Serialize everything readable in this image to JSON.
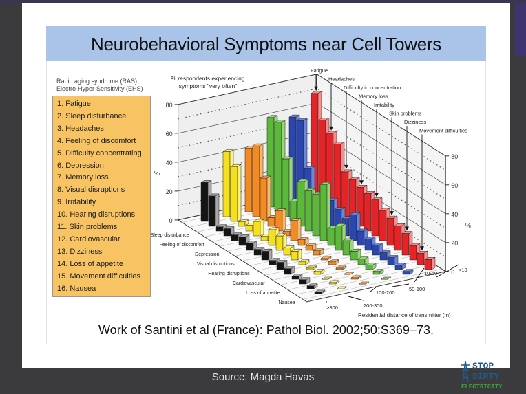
{
  "slide": {
    "title": "Neurobehavioral Symptoms near Cell Towers",
    "legend_heading": [
      "Rapid aging syndrome (RAS)",
      "Electro-Hyper-Sensitivity (EHS)"
    ],
    "legend_items": [
      "1. Fatigue",
      "2. Sleep disturbance",
      "3. Headaches",
      "4. Feeling of discomfort",
      "5. Difficulty concentrating",
      "6. Depression",
      "7. Memory loss",
      "8. Visual disruptions",
      "9. Irritability",
      "10. Hearing disruptions",
      "11. Skin problems",
      "12. Cardiovascular",
      "13. Dizziness",
      "14. Loss of appetite",
      "15. Movement difficulties",
      "16. Nausea"
    ],
    "citation": "Work of Santini et al (France): Pathol Biol. 2002;50:S369–73.",
    "source": "Source: Magda Havas",
    "logo": {
      "line1": "STOP",
      "line2": "DIRTY",
      "line3": "ELECTRICITY"
    }
  },
  "chart_data": {
    "type": "bar",
    "subtype": "3d-grouped",
    "title": "% respondents experiencing symptoms \"very often\"",
    "ylabel": "%",
    "xlabel": "Residential distance of transmitter (m)",
    "ylim": [
      0,
      80
    ],
    "yticks": [
      0,
      20,
      40,
      60,
      80
    ],
    "symptoms": [
      "Fatigue",
      "Sleep disturbance",
      "Headaches",
      "Feeling of discomfort",
      "Difficulty in concentration",
      "Depression",
      "Memory loss",
      "Visual disruptions",
      "Irritability",
      "Hearing disruptions",
      "Skin problems",
      "Cardiovascular",
      "Dizziness",
      "Loss of appetite",
      "Movement difficulties",
      "Nausea"
    ],
    "front_labels": [
      "Sleep disturbance",
      "Feeling of discomfort",
      "Depression",
      "Visual disruptions",
      "Hearing disruptions",
      "Cardiovascular",
      "Loss of appetite",
      "Nausea"
    ],
    "top_labels": [
      "Fatigue",
      "Headaches",
      "Difficulty in concentration",
      "Memory loss",
      "Irritability",
      "Skin problems",
      "Dizziness",
      "Movement difficulties"
    ],
    "series": [
      {
        "name": ">300",
        "color": "#141414",
        "side": "#a8a8a8",
        "values": [
          27,
          21,
          3,
          5,
          4,
          6,
          5,
          4,
          6,
          3,
          5,
          4,
          2,
          3,
          2,
          1
        ]
      },
      {
        "name": "200-300",
        "color": "#f4e11c",
        "side": "#fff27a",
        "values": [
          45,
          38,
          3,
          4,
          10,
          3,
          11,
          10,
          5,
          6,
          2,
          1,
          2,
          0,
          1,
          0
        ]
      },
      {
        "name": "100-200",
        "color": "#f38a22",
        "side": "#fbb76a",
        "values": [
          44,
          49,
          30,
          6,
          14,
          3,
          14,
          4,
          3,
          3,
          1,
          2,
          1,
          0,
          1,
          0
        ]
      },
      {
        "name": "50-100",
        "color": "#5cb83a",
        "side": "#9ad67a",
        "values": [
          62,
          62,
          40,
          14,
          31,
          28,
          29,
          39,
          12,
          17,
          10,
          6,
          4,
          3,
          2,
          0
        ]
      },
      {
        "name": "10-50",
        "color": "#2a46b0",
        "side": "#6e86d8",
        "values": [
          59,
          60,
          30,
          10,
          20,
          18,
          15,
          12,
          18,
          10,
          8,
          7,
          5,
          5,
          3,
          2
        ]
      },
      {
        "name": "<10",
        "color": "#e52427",
        "side": "#f69090",
        "values": [
          72,
          57,
          51,
          47,
          31,
          29,
          27,
          26,
          25,
          21,
          19,
          17,
          15,
          10,
          8,
          7
        ]
      }
    ]
  }
}
